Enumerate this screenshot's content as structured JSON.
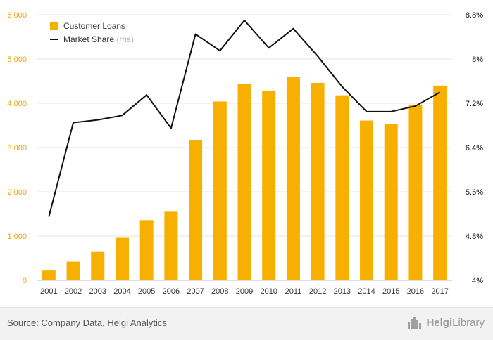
{
  "chart_data": {
    "type": "bar",
    "categories": [
      "2001",
      "2002",
      "2003",
      "2004",
      "2005",
      "2006",
      "2007",
      "2008",
      "2009",
      "2010",
      "2011",
      "2012",
      "2013",
      "2014",
      "2015",
      "2016",
      "2017"
    ],
    "series": [
      {
        "name": "Customer Loans",
        "type": "bar",
        "axis": "left",
        "color": "#f8b000",
        "values": [
          220,
          420,
          640,
          960,
          1360,
          1550,
          3160,
          4040,
          4430,
          4270,
          4590,
          4460,
          4180,
          3610,
          3540,
          3970,
          4400
        ]
      },
      {
        "name": "Market Share",
        "type": "line",
        "axis": "right",
        "color": "#111111",
        "values": [
          5.15,
          6.85,
          6.9,
          6.98,
          7.35,
          6.75,
          8.45,
          8.15,
          8.7,
          8.2,
          8.55,
          8.05,
          7.5,
          7.05,
          7.05,
          7.15,
          7.4
        ]
      }
    ],
    "legend": [
      {
        "label": "Customer Loans",
        "suffix": ""
      },
      {
        "label": "Market Share",
        "suffix": "(rhs)"
      }
    ],
    "y_left": {
      "ticks": [
        0,
        1000,
        2000,
        3000,
        4000,
        5000,
        6000
      ],
      "tick_labels": [
        "0",
        "1 000",
        "2 000",
        "3 000",
        "4 000",
        "5 000",
        "6 000"
      ],
      "range": [
        0,
        6000
      ],
      "color": "#f0a400"
    },
    "y_right": {
      "ticks": [
        4,
        4.8,
        5.6,
        6.4,
        7.2,
        8,
        8.8
      ],
      "tick_labels": [
        "4%",
        "4.8%",
        "5.6%",
        "6.4%",
        "7.2%",
        "8%",
        "8.8%"
      ],
      "range": [
        4,
        8.8
      ]
    },
    "grid": true,
    "legend_position": "top-left"
  },
  "footer": {
    "source": "Source: Company Data, Helgi Analytics",
    "brand_bold": "Helgi",
    "brand_rest": "Library"
  }
}
